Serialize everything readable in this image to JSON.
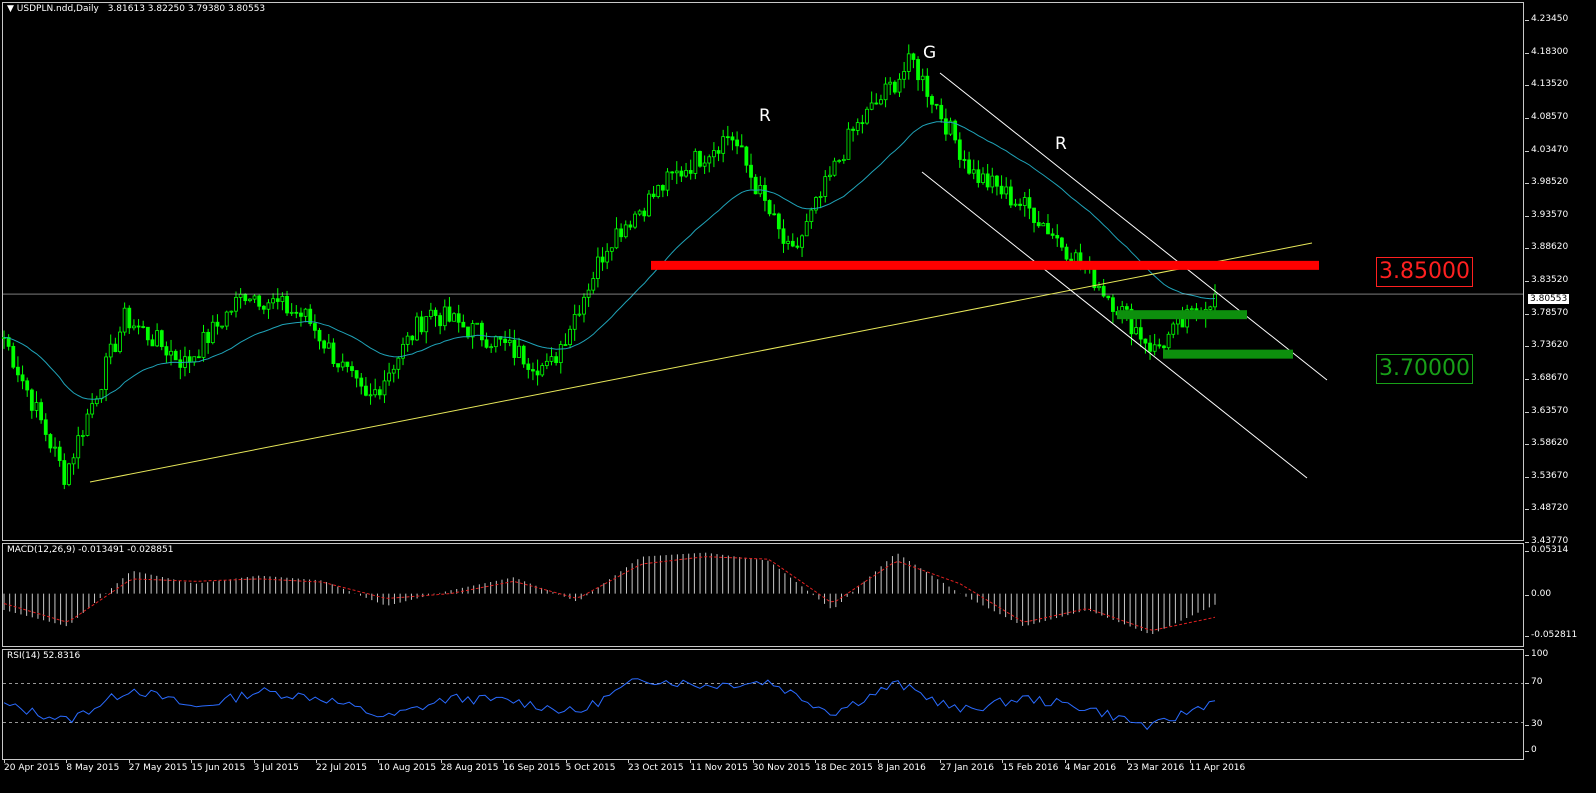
{
  "header": {
    "symbol_title": "USDPLN.ndd,Daily",
    "ohlc": "3.81613 3.82250 3.79380 3.80553"
  },
  "macd_title": "MACD(12,26,9) -0.013491 -0.028851",
  "rsi_title": "RSI(14) 52.8316",
  "price_ticks": [
    "4.23450",
    "4.18300",
    "4.13520",
    "4.08570",
    "4.03470",
    "3.98520",
    "3.93570",
    "3.88620",
    "3.83520",
    "3.78570",
    "3.73620",
    "3.68670",
    "3.63570",
    "3.58620",
    "3.53670",
    "3.48720",
    "3.43770"
  ],
  "current_price": "3.80553",
  "macd_ticks": [
    "0.05314",
    "0.00",
    "-0.052811"
  ],
  "rsi_ticks": [
    "100",
    "70",
    "30",
    "0"
  ],
  "dates": [
    "20 Apr 2015",
    "8 May 2015",
    "27 May 2015",
    "15 Jun 2015",
    "3 Jul 2015",
    "22 Jul 2015",
    "10 Aug 2015",
    "28 Aug 2015",
    "16 Sep 2015",
    "5 Oct 2015",
    "23 Oct 2015",
    "11 Nov 2015",
    "30 Nov 2015",
    "18 Dec 2015",
    "8 Jan 2016",
    "27 Jan 2016",
    "15 Feb 2016",
    "4 Mar 2016",
    "23 Mar 2016",
    "11 Apr 2016"
  ],
  "annotations": {
    "level_high": "3.85000",
    "level_low": "3.70000",
    "marker_left": "R",
    "marker_top": "G",
    "marker_right": "R"
  },
  "colors": {
    "candle": "#00ff00",
    "moving_average": "#1fa3b8",
    "trendline": "#e8e85a",
    "channel": "#ffffff",
    "resistance": "#ff0000",
    "support": "#0d8f0d",
    "macd_signal": "#e02020",
    "rsi": "#2a6bff"
  },
  "chart_data": [
    {
      "type": "candlestick",
      "title": "USDPLN.ndd,Daily",
      "ylim": [
        3.4377,
        4.2345
      ],
      "key_points": [
        {
          "x": "20 Apr 2015",
          "y": 3.74
        },
        {
          "x": "8 May 2015",
          "y": 3.53
        },
        {
          "x": "27 May 2015",
          "y": 3.77
        },
        {
          "x": "15 Jun 2015",
          "y": 3.7
        },
        {
          "x": "3 Jul 2015",
          "y": 3.81
        },
        {
          "x": "22 Jul 2015",
          "y": 3.77
        },
        {
          "x": "10 Aug 2015",
          "y": 3.64
        },
        {
          "x": "28 Aug 2015",
          "y": 3.78
        },
        {
          "x": "16 Sep 2015",
          "y": 3.74
        },
        {
          "x": "5 Oct 2015",
          "y": 3.69
        },
        {
          "x": "23 Oct 2015",
          "y": 3.89
        },
        {
          "x": "11 Nov 2015",
          "y": 3.98
        },
        {
          "x": "30 Nov 2015",
          "y": 4.05
        },
        {
          "x": "18 Dec 2015",
          "y": 3.86
        },
        {
          "x": "8 Jan 2016",
          "y": 4.05
        },
        {
          "x": "18 Jan 2016",
          "y": 4.16
        },
        {
          "x": "27 Jan 2016",
          "y": 3.99
        },
        {
          "x": "15 Feb 2016",
          "y": 3.93
        },
        {
          "x": "4 Mar 2016",
          "y": 3.83
        },
        {
          "x": "23 Mar 2016",
          "y": 3.72
        },
        {
          "x": "11 Apr 2016",
          "y": 3.8055
        }
      ],
      "levels": [
        3.85,
        3.7
      ],
      "support_zones": [
        3.775,
        3.715
      ]
    },
    {
      "type": "line",
      "title": "MACD(12,26,9)",
      "ylim": [
        -0.052811,
        0.05314
      ],
      "series": [
        {
          "name": "MACD",
          "values": [
            -0.02,
            -0.04,
            0.028,
            0.012,
            0.022,
            0.016,
            -0.015,
            0.004,
            0.02,
            -0.01,
            0.045,
            0.05,
            0.04,
            -0.02,
            0.05,
            0.0,
            -0.04,
            -0.02,
            -0.05,
            -0.013491
          ]
        },
        {
          "name": "Signal",
          "values": [
            -0.012,
            -0.035,
            0.018,
            0.015,
            0.018,
            0.014,
            -0.006,
            0.0,
            0.015,
            -0.006,
            0.036,
            0.045,
            0.042,
            -0.012,
            0.04,
            0.012,
            -0.035,
            -0.018,
            -0.045,
            -0.028851
          ]
        }
      ]
    },
    {
      "type": "line",
      "title": "RSI(14)",
      "ylim": [
        0,
        100
      ],
      "series": [
        {
          "name": "RSI(14)",
          "values": [
            48,
            32,
            65,
            45,
            62,
            55,
            35,
            55,
            52,
            40,
            75,
            68,
            72,
            40,
            70,
            42,
            55,
            45,
            25,
            52.8316
          ]
        }
      ]
    }
  ]
}
